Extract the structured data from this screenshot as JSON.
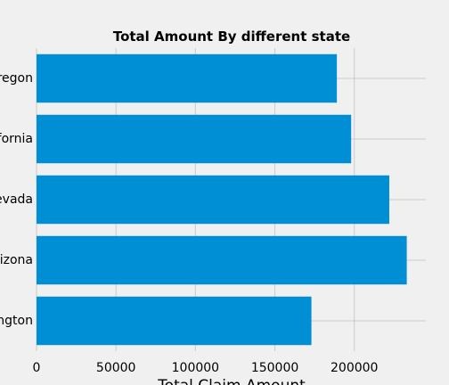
{
  "chart_data": {
    "type": "bar",
    "orientation": "horizontal",
    "title": "Total Amount By different state",
    "xlabel": "Total Claim Amount",
    "ylabel": "",
    "categories": [
      "Washington",
      "Arizona",
      "Nevada",
      "California",
      "Oregon"
    ],
    "values": [
      173000,
      233000,
      222000,
      198000,
      189000
    ],
    "xlim": [
      0,
      245000
    ],
    "xticks": [
      0,
      50000,
      100000,
      150000,
      200000
    ],
    "xtick_labels": [
      "0",
      "50000",
      "100000",
      "150000",
      "200000"
    ],
    "grid": true,
    "bar_color": "#008fd5",
    "background": "#f0f0f0"
  }
}
